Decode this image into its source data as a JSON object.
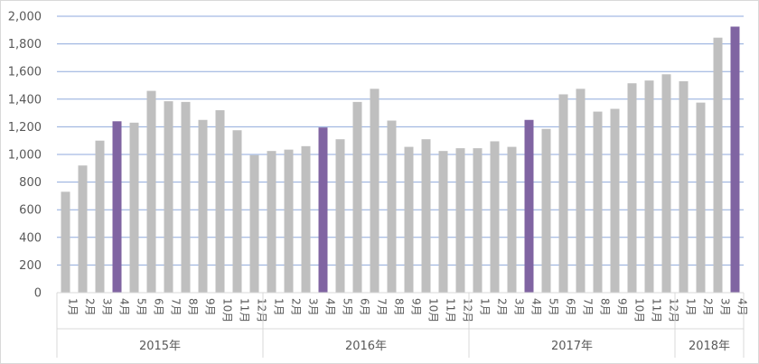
{
  "chart_data": {
    "type": "bar",
    "title": "",
    "xlabel": "",
    "ylabel": "",
    "ylim": [
      0,
      2000
    ],
    "yticks": [
      0,
      200,
      400,
      600,
      800,
      1000,
      1200,
      1400,
      1600,
      1800,
      2000
    ],
    "ytick_labels": [
      "0",
      "200",
      "400",
      "600",
      "800",
      "1,000",
      "1,200",
      "1,400",
      "1,600",
      "1,800",
      "2,000"
    ],
    "grid": true,
    "legend": "none",
    "colors": {
      "default_bar": "#bfbfbf",
      "highlight_bar": "#8064a2",
      "gridline": "#8faadc",
      "axis_text": "#595959",
      "separator": "#d9d9d9"
    },
    "groups": [
      {
        "label": "2015年",
        "months": [
          "1月",
          "2月",
          "3月",
          "4月",
          "5月",
          "6月",
          "7月",
          "8月",
          "9月",
          "10月",
          "11月",
          "12月"
        ],
        "values": [
          730,
          920,
          1100,
          1240,
          1230,
          1460,
          1385,
          1380,
          1250,
          1320,
          1175,
          995
        ]
      },
      {
        "label": "2016年",
        "months": [
          "1月",
          "2月",
          "3月",
          "4月",
          "5月",
          "6月",
          "7月",
          "8月",
          "9月",
          "10月",
          "11月",
          "12月"
        ],
        "values": [
          1025,
          1035,
          1060,
          1195,
          1110,
          1380,
          1475,
          1245,
          1055,
          1110,
          1025,
          1045
        ]
      },
      {
        "label": "2017年",
        "months": [
          "1月",
          "2月",
          "3月",
          "4月",
          "5月",
          "6月",
          "7月",
          "8月",
          "9月",
          "10月",
          "11月",
          "12月"
        ],
        "values": [
          1045,
          1095,
          1055,
          1250,
          1185,
          1435,
          1475,
          1310,
          1330,
          1515,
          1535,
          1580
        ]
      },
      {
        "label": "2018年",
        "months": [
          "1月",
          "2月",
          "3月",
          "4月"
        ],
        "values": [
          1530,
          1375,
          1845,
          1925
        ]
      }
    ],
    "highlight_month": "4月"
  }
}
